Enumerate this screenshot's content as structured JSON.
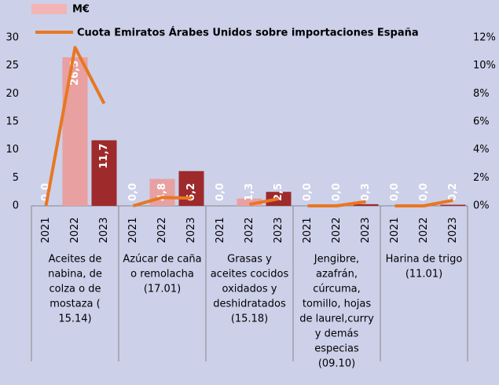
{
  "chart_data": {
    "type": "bar_line",
    "categories": [
      "2021",
      "2022",
      "2023",
      "2021",
      "2022",
      "2023",
      "2021",
      "2022",
      "2023",
      "2021",
      "2022",
      "2023",
      "2021",
      "2022",
      "2023"
    ],
    "groups": [
      {
        "lines": [
          "Aceites de",
          "nabina, de",
          "colza o de",
          "mostaza (",
          "15.14)"
        ]
      },
      {
        "lines": [
          "Azúcar de caña",
          "o remolacha",
          "(17.01)"
        ]
      },
      {
        "lines": [
          "Grasas y",
          "aceites cocidos",
          "oxidados y",
          "deshidratados",
          "(15.18)"
        ]
      },
      {
        "lines": [
          "Jengibre,",
          "azafrán,",
          "cúrcuma,",
          "tomillo, hojas",
          "de laurel,curry",
          "y demás",
          "especias",
          "(09.10)"
        ]
      },
      {
        "lines": [
          "Harina de trigo",
          "(11.01)"
        ]
      }
    ],
    "series": [
      {
        "name": "M€",
        "type": "bar",
        "color": "#f2b4b4",
        "colors": [
          "#e8a0a0",
          "#e8a0a0",
          "#9e2a2b",
          "#e8a0a0",
          "#e8a0a0",
          "#9e2a2b",
          "#e8a0a0",
          "#e8a0a0",
          "#9e2a2b",
          "#e8a0a0",
          "#e8a0a0",
          "#9e2a2b",
          "#e8a0a0",
          "#e8a0a0",
          "#9e2a2b"
        ],
        "values": [
          0,
          26.5,
          11.7,
          0,
          4.8,
          6.2,
          0,
          1.3,
          2.5,
          0,
          0,
          0.3,
          0,
          0,
          0.2
        ],
        "value_labels": [
          "0,0",
          "26,5",
          "11,7",
          "0,0",
          "4,8",
          "6,2",
          "0,0",
          "1,3",
          "2,5",
          "0,0",
          "0,0",
          "0,3",
          "0,0",
          "0,0",
          "0,2"
        ]
      },
      {
        "name": "Cuota Emiratos Árabes Unidos sobre importaciones España",
        "type": "line",
        "axis": "y2",
        "color": "#e87722",
        "values": [
          0,
          11.3,
          7.3,
          0,
          0.6,
          0.55,
          null,
          0.1,
          0.5,
          0,
          0,
          0.3,
          0,
          0,
          0.4
        ]
      }
    ],
    "ylim": [
      0,
      30
    ],
    "yticks": [
      0,
      5,
      10,
      15,
      20,
      25,
      30
    ],
    "y2lim": [
      0,
      12
    ],
    "y2ticks": [
      {
        "value": 0,
        "label": "0%"
      },
      {
        "value": 2,
        "label": "2%"
      },
      {
        "value": 4,
        "label": "4%"
      },
      {
        "value": 6,
        "label": "6%"
      },
      {
        "value": 8,
        "label": "8%"
      },
      {
        "value": 10,
        "label": "10%"
      },
      {
        "value": 12,
        "label": "12%"
      }
    ]
  }
}
